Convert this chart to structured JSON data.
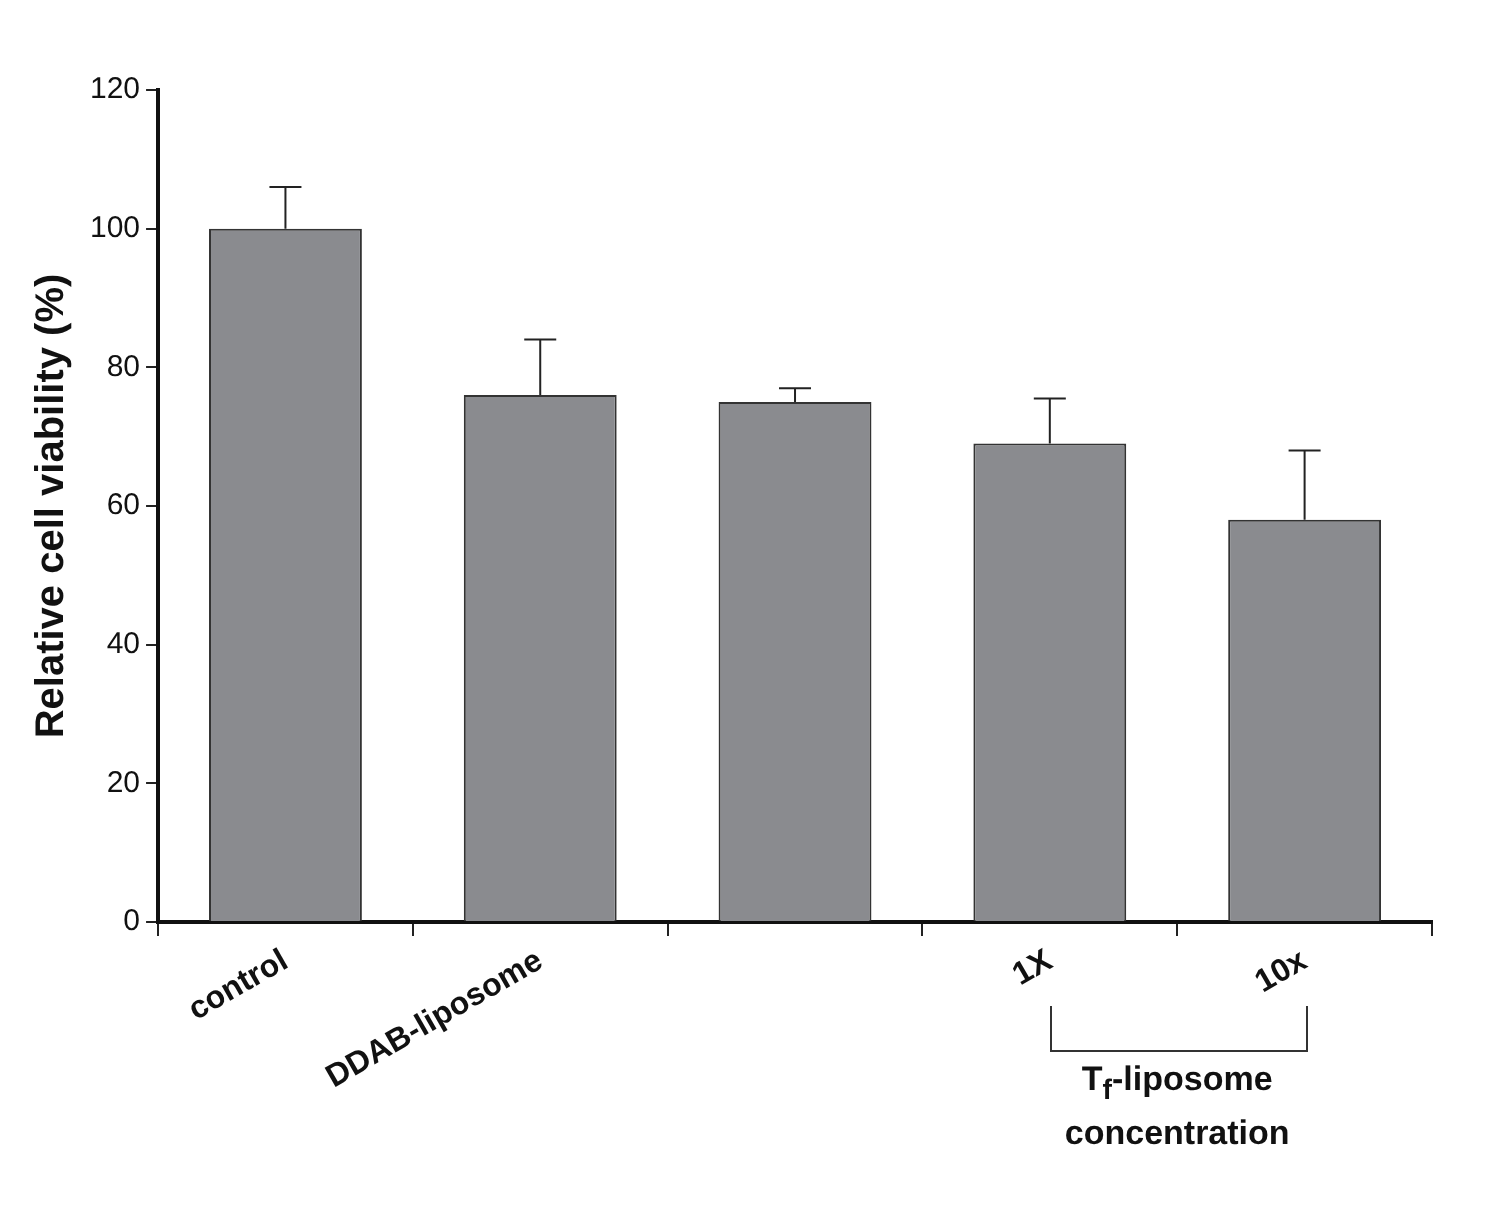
{
  "chart_data": {
    "type": "bar",
    "ylabel": "Relative cell viability (%)",
    "categories": [
      "control",
      "DDAB-liposome",
      null,
      "1X",
      "10x"
    ],
    "values": [
      100,
      76,
      75,
      69,
      58
    ],
    "errors": [
      [
        100,
        106
      ],
      [
        76,
        84
      ],
      [
        75,
        77
      ],
      [
        69,
        75.5
      ],
      [
        58,
        68
      ]
    ],
    "color": "#8a8b8f",
    "ylim": [
      0,
      120
    ],
    "yticks": [
      0,
      20,
      40,
      60,
      80,
      100,
      120
    ],
    "grid": false,
    "legend": false,
    "annotations": [
      "T$_{f}$-liposome concentration"
    ]
  }
}
